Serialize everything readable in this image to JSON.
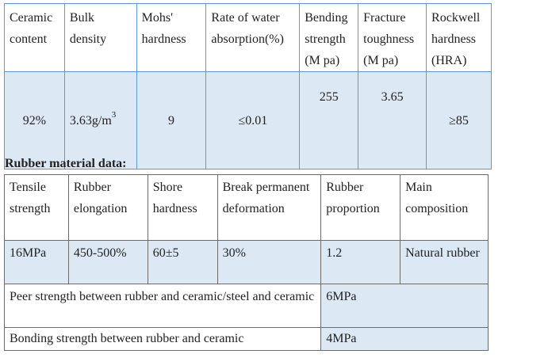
{
  "ceramic": {
    "headers": [
      "Ceramic content",
      "Bulk density",
      "Mohs' hardness",
      "Rate of water absorption(%)",
      "Bending strength (M pa)",
      "Fracture toughness (M pa)",
      "Rockwell hardness (HRA)"
    ],
    "values": {
      "content": "92%",
      "density": "3.63g/m",
      "density_sup": "3",
      "mohs": "9",
      "absorption": "≤0.01",
      "bending": "255",
      "fracture": "3.65",
      "rockwell": "≥85"
    }
  },
  "rubber": {
    "heading": "Rubber material data:",
    "headers": [
      "Tensile strength",
      "Rubber elongation",
      "Shore hardness",
      "Break permanent deformation",
      "Rubber proportion",
      "Main composition"
    ],
    "values": [
      "16MPa",
      "450-500%",
      "60±5",
      "30%",
      "1.2",
      "Natural rubber"
    ],
    "peer_label": "Peer strength between rubber and ceramic/steel and ceramic",
    "peer_value": "6MPa",
    "bond_label": "Bonding strength between rubber and ceramic",
    "bond_value": "4MPa"
  }
}
